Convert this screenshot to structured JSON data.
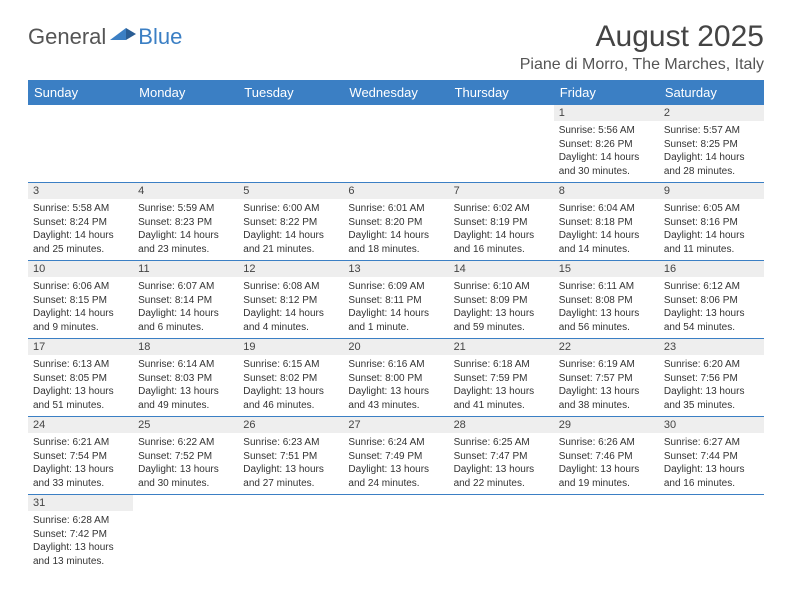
{
  "brand": {
    "part1": "General",
    "part2": "Blue"
  },
  "title": "August 2025",
  "location": "Piane di Morro, The Marches, Italy",
  "columns": [
    "Sunday",
    "Monday",
    "Tuesday",
    "Wednesday",
    "Thursday",
    "Friday",
    "Saturday"
  ],
  "colors": {
    "header_bg": "#3b7fc4",
    "header_text": "#ffffff",
    "daynum_bg": "#eeeeee",
    "border": "#3b7fc4"
  },
  "weeks": [
    [
      null,
      null,
      null,
      null,
      null,
      {
        "n": "1",
        "sunrise": "5:56 AM",
        "sunset": "8:26 PM",
        "daylight": "14 hours and 30 minutes."
      },
      {
        "n": "2",
        "sunrise": "5:57 AM",
        "sunset": "8:25 PM",
        "daylight": "14 hours and 28 minutes."
      }
    ],
    [
      {
        "n": "3",
        "sunrise": "5:58 AM",
        "sunset": "8:24 PM",
        "daylight": "14 hours and 25 minutes."
      },
      {
        "n": "4",
        "sunrise": "5:59 AM",
        "sunset": "8:23 PM",
        "daylight": "14 hours and 23 minutes."
      },
      {
        "n": "5",
        "sunrise": "6:00 AM",
        "sunset": "8:22 PM",
        "daylight": "14 hours and 21 minutes."
      },
      {
        "n": "6",
        "sunrise": "6:01 AM",
        "sunset": "8:20 PM",
        "daylight": "14 hours and 18 minutes."
      },
      {
        "n": "7",
        "sunrise": "6:02 AM",
        "sunset": "8:19 PM",
        "daylight": "14 hours and 16 minutes."
      },
      {
        "n": "8",
        "sunrise": "6:04 AM",
        "sunset": "8:18 PM",
        "daylight": "14 hours and 14 minutes."
      },
      {
        "n": "9",
        "sunrise": "6:05 AM",
        "sunset": "8:16 PM",
        "daylight": "14 hours and 11 minutes."
      }
    ],
    [
      {
        "n": "10",
        "sunrise": "6:06 AM",
        "sunset": "8:15 PM",
        "daylight": "14 hours and 9 minutes."
      },
      {
        "n": "11",
        "sunrise": "6:07 AM",
        "sunset": "8:14 PM",
        "daylight": "14 hours and 6 minutes."
      },
      {
        "n": "12",
        "sunrise": "6:08 AM",
        "sunset": "8:12 PM",
        "daylight": "14 hours and 4 minutes."
      },
      {
        "n": "13",
        "sunrise": "6:09 AM",
        "sunset": "8:11 PM",
        "daylight": "14 hours and 1 minute."
      },
      {
        "n": "14",
        "sunrise": "6:10 AM",
        "sunset": "8:09 PM",
        "daylight": "13 hours and 59 minutes."
      },
      {
        "n": "15",
        "sunrise": "6:11 AM",
        "sunset": "8:08 PM",
        "daylight": "13 hours and 56 minutes."
      },
      {
        "n": "16",
        "sunrise": "6:12 AM",
        "sunset": "8:06 PM",
        "daylight": "13 hours and 54 minutes."
      }
    ],
    [
      {
        "n": "17",
        "sunrise": "6:13 AM",
        "sunset": "8:05 PM",
        "daylight": "13 hours and 51 minutes."
      },
      {
        "n": "18",
        "sunrise": "6:14 AM",
        "sunset": "8:03 PM",
        "daylight": "13 hours and 49 minutes."
      },
      {
        "n": "19",
        "sunrise": "6:15 AM",
        "sunset": "8:02 PM",
        "daylight": "13 hours and 46 minutes."
      },
      {
        "n": "20",
        "sunrise": "6:16 AM",
        "sunset": "8:00 PM",
        "daylight": "13 hours and 43 minutes."
      },
      {
        "n": "21",
        "sunrise": "6:18 AM",
        "sunset": "7:59 PM",
        "daylight": "13 hours and 41 minutes."
      },
      {
        "n": "22",
        "sunrise": "6:19 AM",
        "sunset": "7:57 PM",
        "daylight": "13 hours and 38 minutes."
      },
      {
        "n": "23",
        "sunrise": "6:20 AM",
        "sunset": "7:56 PM",
        "daylight": "13 hours and 35 minutes."
      }
    ],
    [
      {
        "n": "24",
        "sunrise": "6:21 AM",
        "sunset": "7:54 PM",
        "daylight": "13 hours and 33 minutes."
      },
      {
        "n": "25",
        "sunrise": "6:22 AM",
        "sunset": "7:52 PM",
        "daylight": "13 hours and 30 minutes."
      },
      {
        "n": "26",
        "sunrise": "6:23 AM",
        "sunset": "7:51 PM",
        "daylight": "13 hours and 27 minutes."
      },
      {
        "n": "27",
        "sunrise": "6:24 AM",
        "sunset": "7:49 PM",
        "daylight": "13 hours and 24 minutes."
      },
      {
        "n": "28",
        "sunrise": "6:25 AM",
        "sunset": "7:47 PM",
        "daylight": "13 hours and 22 minutes."
      },
      {
        "n": "29",
        "sunrise": "6:26 AM",
        "sunset": "7:46 PM",
        "daylight": "13 hours and 19 minutes."
      },
      {
        "n": "30",
        "sunrise": "6:27 AM",
        "sunset": "7:44 PM",
        "daylight": "13 hours and 16 minutes."
      }
    ],
    [
      {
        "n": "31",
        "sunrise": "6:28 AM",
        "sunset": "7:42 PM",
        "daylight": "13 hours and 13 minutes."
      },
      null,
      null,
      null,
      null,
      null,
      null
    ]
  ],
  "labels": {
    "sunrise": "Sunrise:",
    "sunset": "Sunset:",
    "daylight": "Daylight:"
  }
}
